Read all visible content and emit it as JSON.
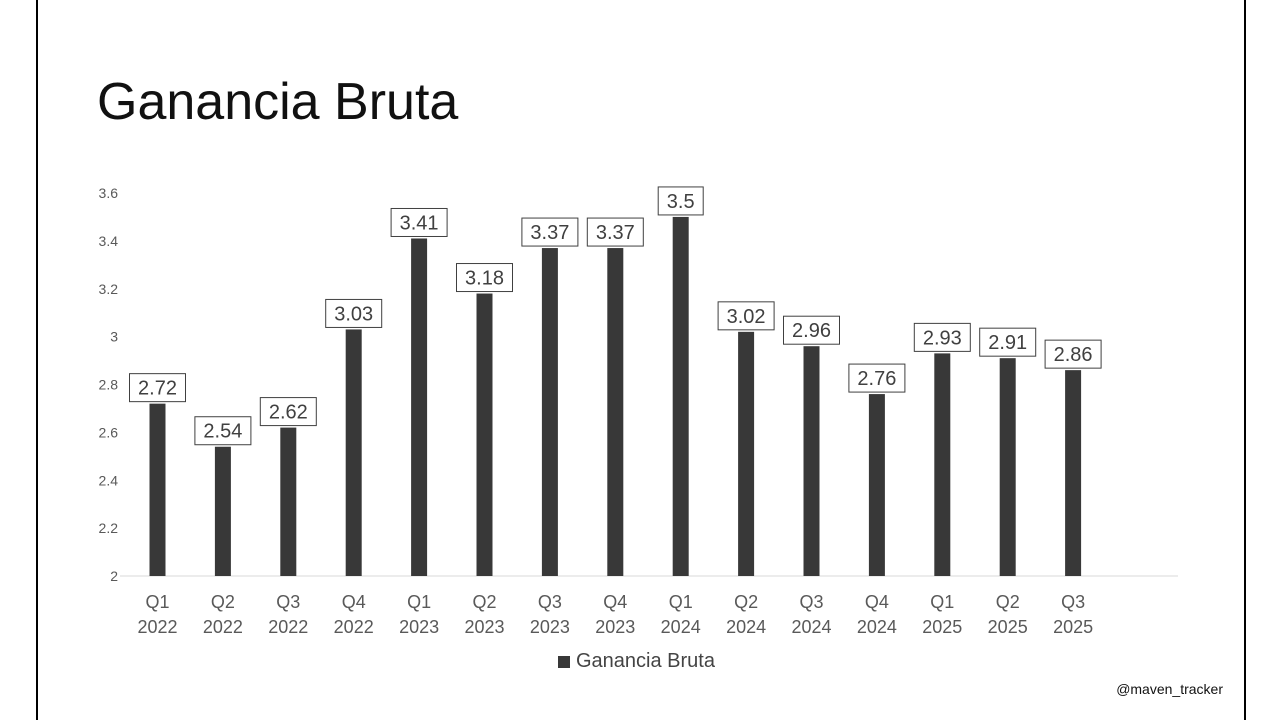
{
  "chart_data": {
    "type": "bar",
    "title": "Ganancia Bruta",
    "categories": [
      [
        "Q1",
        "2022"
      ],
      [
        "Q2",
        "2022"
      ],
      [
        "Q3",
        "2022"
      ],
      [
        "Q4",
        "2022"
      ],
      [
        "Q1",
        "2023"
      ],
      [
        "Q2",
        "2023"
      ],
      [
        "Q3",
        "2023"
      ],
      [
        "Q4",
        "2023"
      ],
      [
        "Q1",
        "2024"
      ],
      [
        "Q2",
        "2024"
      ],
      [
        "Q3",
        "2024"
      ],
      [
        "Q4",
        "2024"
      ],
      [
        "Q1",
        "2025"
      ],
      [
        "Q2",
        "2025"
      ],
      [
        "Q3",
        "2025"
      ]
    ],
    "series": [
      {
        "name": "Ganancia Bruta",
        "values": [
          2.72,
          2.54,
          2.62,
          3.03,
          3.41,
          3.18,
          3.37,
          3.37,
          3.5,
          3.02,
          2.96,
          2.76,
          2.93,
          2.91,
          2.86
        ],
        "labels": [
          "2.72",
          "2.54",
          "2.62",
          "3.03",
          "3.41",
          "3.18",
          "3.37",
          "3.37",
          "3.5",
          "3.02",
          "2.96",
          "2.76",
          "2.93",
          "2.91",
          "2.86"
        ]
      }
    ],
    "ylim": [
      2,
      3.6
    ],
    "yticks": [
      "2",
      "2.2",
      "2.4",
      "2.6",
      "2.8",
      "3",
      "3.2",
      "3.4",
      "3.6"
    ],
    "grid": false,
    "legend": "bottom",
    "bar_color": "#383838"
  },
  "watermark": "@maven_tracker",
  "colors": {
    "bar": "#383838",
    "axis_text": "#595959",
    "title": "#111111",
    "border": "#000000"
  }
}
